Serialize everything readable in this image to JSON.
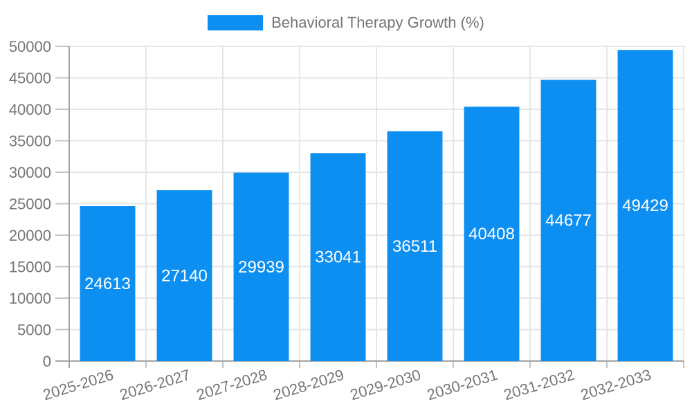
{
  "legend": {
    "label": "Behavioral Therapy Growth (%)"
  },
  "colors": {
    "bar": "#0d8ff2",
    "bar_label": "#ffffff",
    "text": "#757575",
    "grid": "#e6e6e6",
    "axis": "#a3a3a3",
    "tick": "#c4c4c4",
    "background": "#ffffff"
  },
  "chart_data": {
    "type": "bar",
    "title": "Behavioral Therapy Growth (%)",
    "legend_position": "top",
    "grid": true,
    "xlabel": "",
    "ylabel": "",
    "categories": [
      "2025-2026",
      "2026-2027",
      "2027-2028",
      "2028-2029",
      "2029-2030",
      "2030-2031",
      "2031-2032",
      "2032-2033"
    ],
    "series": [
      {
        "name": "Behavioral Therapy Growth (%)",
        "values": [
          24613,
          27140,
          29939,
          33041,
          36511,
          40408,
          44677,
          49429
        ]
      }
    ],
    "bar_labels": [
      "24613",
      "27140",
      "29939",
      "33041",
      "36511",
      "40408",
      "44677",
      "49429"
    ],
    "ylim": [
      0,
      50000
    ],
    "yticks": [
      0,
      5000,
      10000,
      15000,
      20000,
      25000,
      30000,
      35000,
      40000,
      45000,
      50000
    ],
    "xtick_rotation_deg": -17
  }
}
